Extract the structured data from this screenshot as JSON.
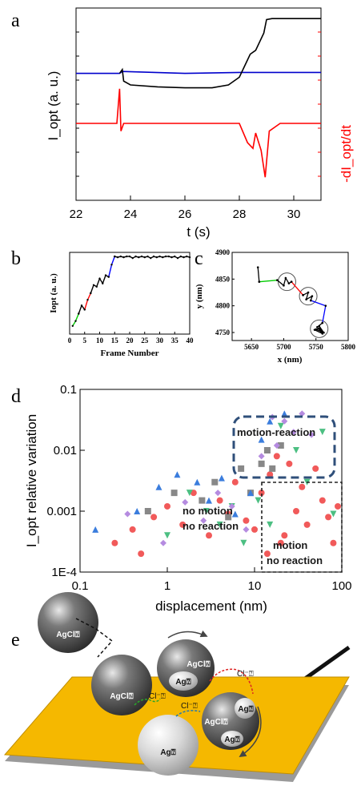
{
  "panels": {
    "a": "a",
    "b": "b",
    "c": "c",
    "d": "d",
    "e": "e"
  },
  "chart_data": [
    {
      "id": "a",
      "type": "line",
      "xlabel": "t (s)",
      "ylabel_left": "I_opt (a. u.)",
      "ylabel_right": "-dI_opt/dt",
      "xlim": [
        22,
        31
      ],
      "xticks": [
        22,
        24,
        26,
        28,
        30
      ],
      "series": [
        {
          "color": "#0000cc",
          "x": [
            22.0,
            23.6,
            23.7,
            26.0,
            28.0,
            31.0
          ],
          "y": [
            0.66,
            0.66,
            0.67,
            0.66,
            0.665,
            0.665
          ]
        },
        {
          "color": "#000000",
          "x": [
            23.6,
            23.7,
            23.75,
            24.0,
            25.0,
            26.0,
            27.0,
            27.6,
            28.0,
            28.2,
            28.4,
            28.6,
            28.9,
            29.0,
            29.2,
            30.0,
            31.0
          ],
          "y": [
            0.66,
            0.68,
            0.62,
            0.6,
            0.59,
            0.585,
            0.585,
            0.6,
            0.64,
            0.7,
            0.76,
            0.78,
            0.87,
            0.94,
            0.945,
            0.945,
            0.945
          ]
        },
        {
          "color": "#ff0000",
          "x": [
            22.0,
            23.5,
            23.6,
            23.65,
            23.75,
            24.0,
            25.0,
            26.0,
            27.0,
            28.0,
            28.3,
            28.5,
            28.6,
            28.8,
            28.95,
            29.1,
            29.5,
            30.0,
            31.0
          ],
          "y": [
            0.4,
            0.4,
            0.58,
            0.36,
            0.4,
            0.4,
            0.4,
            0.4,
            0.4,
            0.4,
            0.3,
            0.27,
            0.35,
            0.26,
            0.12,
            0.36,
            0.4,
            0.4,
            0.4
          ]
        }
      ]
    },
    {
      "id": "b",
      "type": "line",
      "xlabel": "Frame Number",
      "ylabel": "Iopt (a. u.)",
      "xlim": [
        0,
        40
      ],
      "xticks": [
        0,
        5,
        10,
        15,
        20,
        25,
        30,
        35,
        40
      ],
      "series": [
        {
          "color": "#00cc00",
          "x": [
            1,
            2,
            3
          ],
          "y": [
            0.1,
            0.16,
            0.25
          ]
        },
        {
          "color": "#000000",
          "x": [
            3,
            4,
            5
          ],
          "y": [
            0.25,
            0.35,
            0.3
          ]
        },
        {
          "color": "#ff0000",
          "x": [
            5,
            6,
            7
          ],
          "y": [
            0.3,
            0.42,
            0.5
          ]
        },
        {
          "color": "#000000",
          "x": [
            7,
            8,
            9,
            10,
            11,
            12,
            13
          ],
          "y": [
            0.5,
            0.6,
            0.58,
            0.68,
            0.62,
            0.72,
            0.7
          ]
        },
        {
          "color": "#0000ff",
          "x": [
            13,
            14,
            15
          ],
          "y": [
            0.7,
            0.85,
            0.95
          ]
        },
        {
          "color": "#000000",
          "x": [
            15,
            16,
            17,
            18,
            19,
            20,
            21,
            22,
            23,
            24,
            25,
            26,
            27,
            28,
            29,
            30,
            31,
            32,
            33,
            34,
            35,
            36,
            37,
            38,
            39,
            40
          ],
          "y": [
            0.95,
            0.94,
            0.95,
            0.94,
            0.95,
            0.95,
            0.93,
            0.95,
            0.94,
            0.95,
            0.94,
            0.95,
            0.93,
            0.95,
            0.94,
            0.95,
            0.94,
            0.95,
            0.95,
            0.94,
            0.95,
            0.93,
            0.95,
            0.94,
            0.95,
            0.94
          ]
        }
      ]
    },
    {
      "id": "c",
      "type": "line",
      "xlabel": "x (nm)",
      "ylabel": "y (nm)",
      "xlim": [
        5620,
        5800
      ],
      "ylim": [
        4735,
        4900
      ],
      "xticks": [
        5650,
        5700,
        5750,
        5800
      ],
      "yticks": [
        4750,
        4800,
        4850,
        4900
      ],
      "circles": [
        {
          "x": 5705,
          "y": 4845
        },
        {
          "x": 5738,
          "y": 4818
        },
        {
          "x": 5755,
          "y": 4757
        }
      ],
      "series": [
        {
          "color": "#000000",
          "x": [
            5660,
            5662
          ],
          "y": [
            4872,
            4845
          ]
        },
        {
          "color": "#00cc00",
          "x": [
            5662,
            5690
          ],
          "y": [
            4845,
            4848
          ]
        },
        {
          "color": "#000000",
          "x": [
            5690,
            5700,
            5703,
            5708,
            5712
          ],
          "y": [
            4848,
            4838,
            4852,
            4842,
            4845
          ]
        },
        {
          "color": "#ff0000",
          "x": [
            5712,
            5730
          ],
          "y": [
            4845,
            4820
          ]
        },
        {
          "color": "#000000",
          "x": [
            5730,
            5738,
            5735,
            5744,
            5742
          ],
          "y": [
            4820,
            4825,
            4812,
            4818,
            4810
          ]
        },
        {
          "color": "#0000ff",
          "x": [
            5742,
            5765,
            5760
          ],
          "y": [
            4810,
            4800,
            4768
          ]
        },
        {
          "color": "#000000",
          "x": [
            5760,
            5752,
            5758,
            5750,
            5762,
            5755,
            5760,
            5748,
            5756
          ],
          "y": [
            4768,
            4760,
            4752,
            4756,
            4750,
            4762,
            4748,
            4755,
            4758
          ]
        }
      ]
    },
    {
      "id": "d",
      "type": "scatter",
      "xscale": "log",
      "yscale": "log",
      "xlim": [
        0.1,
        100
      ],
      "ylim": [
        0.0001,
        0.1
      ],
      "xticks": [
        "0.1",
        "1",
        "10",
        "100"
      ],
      "yticks": [
        "1E-4",
        "0.001",
        "0.01",
        "0.1"
      ],
      "xlabel": "displacement (nm)",
      "ylabel": "I_opt relative variation",
      "regions": [
        "motion-reaction",
        "no motion no reaction",
        "motion no reaction"
      ],
      "region_lines": {
        "motion_reaction": [
          "motion-reaction"
        ],
        "no_motion": [
          "no motion",
          "no reaction"
        ],
        "motion_no_reaction": [
          "motion",
          "no reaction"
        ]
      },
      "series": [
        {
          "marker": "circle",
          "color": "#f15a5a",
          "x": [
            0.25,
            0.4,
            0.5,
            0.7,
            1.0,
            1.5,
            2.0,
            3.0,
            4.0,
            5.0,
            6.0,
            8.0,
            10,
            12,
            15,
            20,
            30,
            40,
            60,
            80,
            18,
            25,
            35,
            50,
            70,
            90,
            14,
            22
          ],
          "y": [
            0.0003,
            0.0005,
            0.0002,
            0.0008,
            0.0012,
            0.0006,
            0.002,
            0.0004,
            0.0015,
            0.0009,
            0.003,
            0.0007,
            0.0005,
            0.002,
            0.004,
            0.0003,
            0.001,
            0.0006,
            0.0015,
            0.0003,
            0.008,
            0.006,
            0.0025,
            0.005,
            0.0008,
            0.0012,
            0.0002,
            0.0004
          ]
        },
        {
          "marker": "square",
          "color": "#888888",
          "x": [
            0.6,
            1.2,
            2.5,
            3.5,
            5.0,
            7.0,
            9.0,
            12,
            14,
            16,
            20
          ],
          "y": [
            0.001,
            0.002,
            0.0015,
            0.003,
            0.0008,
            0.005,
            0.002,
            0.006,
            0.01,
            0.005,
            0.012
          ]
        },
        {
          "marker": "triangle-up",
          "color": "#3b7ddd",
          "x": [
            0.15,
            0.45,
            0.8,
            1.3,
            2.2,
            3.0,
            4.2,
            6.0,
            9.0,
            12,
            15,
            22
          ],
          "y": [
            0.0005,
            0.001,
            0.0025,
            0.004,
            0.003,
            0.0015,
            0.0035,
            0.0009,
            0.002,
            0.015,
            0.03,
            0.04
          ]
        },
        {
          "marker": "triangle-down",
          "color": "#4cbf82",
          "x": [
            1.0,
            1.8,
            2.8,
            4.0,
            5.5,
            7.5,
            11,
            15,
            20,
            30,
            40,
            60,
            80
          ],
          "y": [
            0.0004,
            0.002,
            0.001,
            0.0006,
            0.0012,
            0.0003,
            0.0015,
            0.0006,
            0.025,
            0.01,
            0.003,
            0.02,
            0.0009
          ]
        },
        {
          "marker": "diamond",
          "color": "#b58be0",
          "x": [
            0.35,
            0.9,
            1.6,
            2.6,
            3.8,
            5.5,
            8.0,
            12,
            16,
            18,
            22,
            28,
            35,
            45
          ],
          "y": [
            0.0009,
            0.0003,
            0.0014,
            0.0007,
            0.002,
            0.0012,
            0.0005,
            0.008,
            0.035,
            0.012,
            0.03,
            0.02,
            0.04,
            0.018
          ]
        }
      ]
    }
  ],
  "diagram": {
    "labels": {
      "sphere1": "AgCl⍰",
      "sphere2": "AgCl⍰",
      "sphere3_top": "AgCl⍰",
      "sphere3_bottom": "Ag⍰",
      "sphere4": "Ag⍰",
      "sphere5_main": "AgCl⍰",
      "sphere5_top": "Ag⍰",
      "sphere5_bottom": "Ag⍰",
      "ion1": "Cl⁻⍰",
      "ion2": "Cl⁻⍰",
      "ion3": "Cl⁻⍰"
    },
    "colors": {
      "substrate": "#f5b800",
      "sphere_dark": "#555555",
      "sphere_light": "#dcdcdc"
    }
  }
}
